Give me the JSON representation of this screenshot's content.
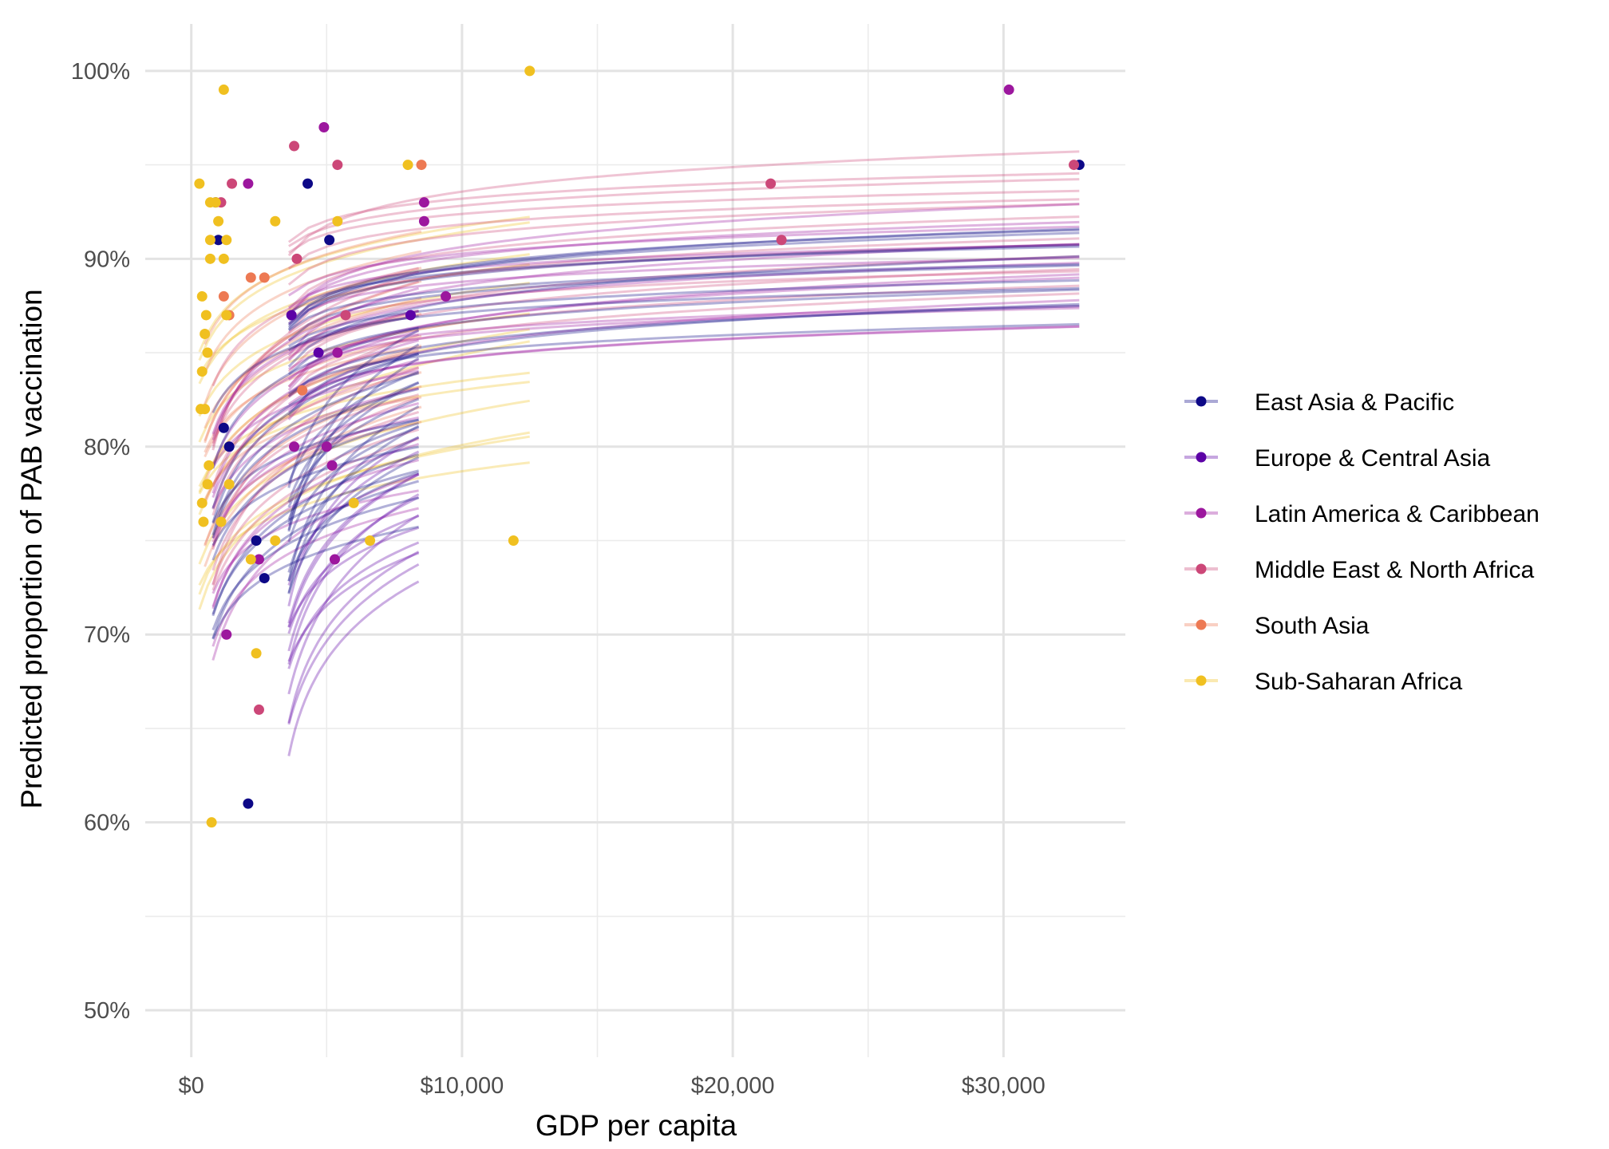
{
  "chart_data": {
    "type": "scatter",
    "title": "",
    "xlabel": "GDP per capita",
    "ylabel": "Predicted proportion of PAB vaccination",
    "xlim": [
      -1700,
      34500
    ],
    "ylim": [
      0.475,
      1.025
    ],
    "x_ticks": [
      0,
      10000,
      20000,
      30000
    ],
    "x_tick_labels": [
      "$0",
      "$10,000",
      "$20,000",
      "$30,000"
    ],
    "y_ticks": [
      0.5,
      0.6,
      0.7,
      0.8,
      0.9,
      1.0
    ],
    "y_tick_labels": [
      "50%",
      "60%",
      "70%",
      "80%",
      "90%",
      "100%"
    ],
    "grid": true,
    "legend_position": "right",
    "series": [
      {
        "name": "East Asia & Pacific",
        "color": "#0d0887",
        "points": [
          [
            900,
            0.93
          ],
          [
            1000,
            0.91
          ],
          [
            1200,
            0.81
          ],
          [
            1400,
            0.8
          ],
          [
            2100,
            0.61
          ],
          [
            2400,
            0.75
          ],
          [
            2700,
            0.73
          ],
          [
            4300,
            0.94
          ],
          [
            5100,
            0.91
          ],
          [
            32800,
            0.95
          ]
        ],
        "fit_ranges": [
          [
            800,
            8400
          ],
          [
            3600,
            8400
          ],
          [
            3600,
            32800
          ]
        ],
        "fit_levels": [
          [
            0.76,
            0.87
          ],
          [
            0.79,
            0.86
          ],
          [
            0.87,
            0.92
          ]
        ]
      },
      {
        "name": "Europe & Central Asia",
        "color": "#5c01a6",
        "points": [
          [
            3700,
            0.87
          ],
          [
            4700,
            0.85
          ],
          [
            8100,
            0.87
          ]
        ],
        "fit_ranges": [
          [
            3600,
            8400
          ]
        ],
        "fit_levels": [
          [
            0.73,
            0.8
          ]
        ]
      },
      {
        "name": "Latin America & Caribbean",
        "color": "#9c179e",
        "points": [
          [
            1300,
            0.7
          ],
          [
            2100,
            0.94
          ],
          [
            2500,
            0.74
          ],
          [
            3800,
            0.8
          ],
          [
            4900,
            0.97
          ],
          [
            5000,
            0.8
          ],
          [
            5200,
            0.79
          ],
          [
            5300,
            0.74
          ],
          [
            5400,
            0.85
          ],
          [
            8600,
            0.93
          ],
          [
            8600,
            0.92
          ],
          [
            9400,
            0.88
          ],
          [
            30200,
            0.99
          ]
        ],
        "fit_ranges": [
          [
            800,
            8400
          ],
          [
            3600,
            32800
          ]
        ],
        "fit_levels": [
          [
            0.77,
            0.88
          ],
          [
            0.86,
            0.925
          ]
        ]
      },
      {
        "name": "Middle East & North Africa",
        "color": "#cc4778",
        "points": [
          [
            1500,
            0.94
          ],
          [
            1100,
            0.93
          ],
          [
            2500,
            0.66
          ],
          [
            3800,
            0.96
          ],
          [
            3900,
            0.9
          ],
          [
            5400,
            0.95
          ],
          [
            5700,
            0.87
          ],
          [
            21400,
            0.94
          ],
          [
            21800,
            0.91
          ],
          [
            32600,
            0.95
          ]
        ],
        "fit_ranges": [
          [
            800,
            8400
          ],
          [
            3600,
            32800
          ]
        ],
        "fit_levels": [
          [
            0.8,
            0.9
          ],
          [
            0.88,
            0.955
          ]
        ]
      },
      {
        "name": "South Asia",
        "color": "#ed7953",
        "points": [
          [
            1200,
            0.88
          ],
          [
            1400,
            0.87
          ],
          [
            2200,
            0.89
          ],
          [
            2700,
            0.89
          ],
          [
            4100,
            0.83
          ],
          [
            8500,
            0.95
          ]
        ],
        "fit_ranges": [
          [
            500,
            8500
          ]
        ],
        "fit_levels": [
          [
            0.81,
            0.91
          ]
        ]
      },
      {
        "name": "Sub-Saharan Africa",
        "color": "#f0c020",
        "points": [
          [
            300,
            0.94
          ],
          [
            400,
            0.88
          ],
          [
            400,
            0.84
          ],
          [
            450,
            0.76
          ],
          [
            500,
            0.86
          ],
          [
            500,
            0.82
          ],
          [
            550,
            0.87
          ],
          [
            600,
            0.85
          ],
          [
            600,
            0.78
          ],
          [
            650,
            0.79
          ],
          [
            700,
            0.91
          ],
          [
            700,
            0.9
          ],
          [
            700,
            0.93
          ],
          [
            750,
            0.6
          ],
          [
            900,
            0.93
          ],
          [
            1000,
            0.92
          ],
          [
            1100,
            0.76
          ],
          [
            1200,
            0.99
          ],
          [
            1200,
            0.9
          ],
          [
            1300,
            0.91
          ],
          [
            1300,
            0.87
          ],
          [
            1400,
            0.78
          ],
          [
            2200,
            0.74
          ],
          [
            2400,
            0.69
          ],
          [
            3100,
            0.75
          ],
          [
            3100,
            0.92
          ],
          [
            5400,
            0.92
          ],
          [
            6000,
            0.77
          ],
          [
            6600,
            0.75
          ],
          [
            8000,
            0.95
          ],
          [
            11900,
            0.75
          ],
          [
            12500,
            1.0
          ],
          [
            400,
            0.77
          ],
          [
            350,
            0.82
          ]
        ],
        "fit_ranges": [
          [
            300,
            12500
          ]
        ],
        "fit_levels": [
          [
            0.79,
            0.925
          ]
        ]
      }
    ]
  }
}
